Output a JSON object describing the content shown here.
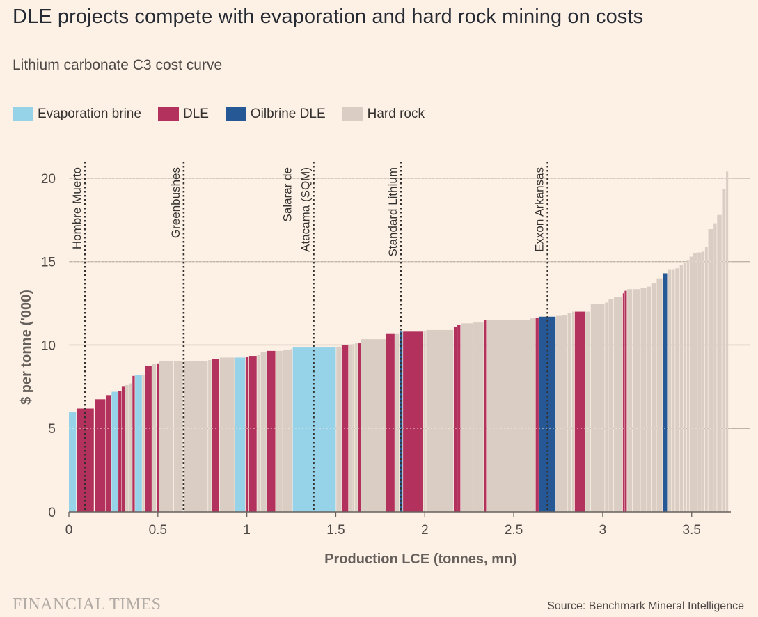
{
  "title": "DLE projects compete with evaporation and hard rock mining on costs",
  "subtitle": "Lithium carbonate C3 cost curve",
  "source": "Source: Benchmark Mineral Intelligence",
  "logo_text": "FINANCIAL TIMES",
  "colors": {
    "background": "#FDF1E6",
    "Evaporation brine": "#96D3E8",
    "DLE": "#B3325D",
    "Oilbrine DLE": "#275896",
    "Hard rock": "#DACDC3",
    "grid": "#BFB3A8",
    "text": "#33302E"
  },
  "legend": [
    {
      "label": "Evaporation brine",
      "color": "#96D3E8"
    },
    {
      "label": "DLE",
      "color": "#B3325D"
    },
    {
      "label": "Oilbrine DLE",
      "color": "#275896"
    },
    {
      "label": "Hard rock",
      "color": "#DACDC3"
    }
  ],
  "chart_data": {
    "type": "bar",
    "xlabel": "Production LCE (tonnes, mn)",
    "ylabel": "$ per tonne ('000)",
    "xlim": [
      0,
      3.72
    ],
    "ylim": [
      0,
      21
    ],
    "xticks": [
      0,
      0.5,
      1,
      1.5,
      2,
      2.5,
      3,
      3.5
    ],
    "xtick_labels": [
      "0",
      "0.5",
      "1",
      "1.5",
      "2",
      "2.5",
      "3",
      "3.5"
    ],
    "yticks": [
      0,
      5,
      10,
      15,
      20
    ],
    "ytick_labels": [
      "0",
      "5",
      "10",
      "15",
      "20"
    ],
    "grid": true,
    "legend_position": "top-left",
    "note": "Variable-width bars: each project spans [x0, x1] of cumulative production with height = cost.",
    "bars": [
      {
        "x0": 0.0,
        "x1": 0.04,
        "cost": 6.0,
        "type": "Evaporation brine"
      },
      {
        "x0": 0.045,
        "x1": 0.14,
        "cost": 6.2,
        "type": "DLE"
      },
      {
        "x0": 0.145,
        "x1": 0.205,
        "cost": 6.75,
        "type": "DLE"
      },
      {
        "x0": 0.21,
        "x1": 0.235,
        "cost": 7.0,
        "type": "DLE"
      },
      {
        "x0": 0.24,
        "x1": 0.275,
        "cost": 7.2,
        "type": "Evaporation brine"
      },
      {
        "x0": 0.278,
        "x1": 0.295,
        "cost": 7.25,
        "type": "DLE"
      },
      {
        "x0": 0.297,
        "x1": 0.315,
        "cost": 7.5,
        "type": "DLE"
      },
      {
        "x0": 0.317,
        "x1": 0.335,
        "cost": 7.6,
        "type": "Hard rock"
      },
      {
        "x0": 0.337,
        "x1": 0.355,
        "cost": 7.7,
        "type": "Hard rock"
      },
      {
        "x0": 0.357,
        "x1": 0.37,
        "cost": 8.15,
        "type": "DLE"
      },
      {
        "x0": 0.372,
        "x1": 0.41,
        "cost": 8.2,
        "type": "Evaporation brine"
      },
      {
        "x0": 0.412,
        "x1": 0.425,
        "cost": 8.2,
        "type": "Hard rock"
      },
      {
        "x0": 0.428,
        "x1": 0.465,
        "cost": 8.75,
        "type": "DLE"
      },
      {
        "x0": 0.468,
        "x1": 0.49,
        "cost": 8.85,
        "type": "Hard rock"
      },
      {
        "x0": 0.493,
        "x1": 0.505,
        "cost": 8.9,
        "type": "DLE"
      },
      {
        "x0": 0.508,
        "x1": 0.585,
        "cost": 9.05,
        "type": "Hard rock"
      },
      {
        "x0": 0.59,
        "x1": 0.64,
        "cost": 9.05,
        "type": "Hard rock"
      },
      {
        "x0": 0.645,
        "x1": 0.78,
        "cost": 9.05,
        "type": "Hard rock"
      },
      {
        "x0": 0.783,
        "x1": 0.8,
        "cost": 9.1,
        "type": "Hard rock"
      },
      {
        "x0": 0.803,
        "x1": 0.845,
        "cost": 9.15,
        "type": "DLE"
      },
      {
        "x0": 0.848,
        "x1": 0.93,
        "cost": 9.25,
        "type": "Hard rock"
      },
      {
        "x0": 0.933,
        "x1": 0.99,
        "cost": 9.25,
        "type": "Evaporation brine"
      },
      {
        "x0": 0.993,
        "x1": 1.01,
        "cost": 9.3,
        "type": "DLE"
      },
      {
        "x0": 1.013,
        "x1": 1.055,
        "cost": 9.35,
        "type": "DLE"
      },
      {
        "x0": 1.058,
        "x1": 1.075,
        "cost": 9.4,
        "type": "Hard rock"
      },
      {
        "x0": 1.078,
        "x1": 1.11,
        "cost": 9.6,
        "type": "Hard rock"
      },
      {
        "x0": 1.113,
        "x1": 1.16,
        "cost": 9.65,
        "type": "DLE"
      },
      {
        "x0": 1.163,
        "x1": 1.2,
        "cost": 9.65,
        "type": "Hard rock"
      },
      {
        "x0": 1.203,
        "x1": 1.24,
        "cost": 9.7,
        "type": "Hard rock"
      },
      {
        "x0": 1.243,
        "x1": 1.255,
        "cost": 9.75,
        "type": "Hard rock"
      },
      {
        "x0": 1.258,
        "x1": 1.5,
        "cost": 9.85,
        "type": "Evaporation brine"
      },
      {
        "x0": 1.503,
        "x1": 1.53,
        "cost": 9.9,
        "type": "Hard rock"
      },
      {
        "x0": 1.533,
        "x1": 1.57,
        "cost": 10.0,
        "type": "DLE"
      },
      {
        "x0": 1.573,
        "x1": 1.59,
        "cost": 10.0,
        "type": "Hard rock"
      },
      {
        "x0": 1.593,
        "x1": 1.605,
        "cost": 10.05,
        "type": "Hard rock"
      },
      {
        "x0": 1.608,
        "x1": 1.622,
        "cost": 10.1,
        "type": "Hard rock"
      },
      {
        "x0": 1.625,
        "x1": 1.64,
        "cost": 10.1,
        "type": "DLE"
      },
      {
        "x0": 1.643,
        "x1": 1.78,
        "cost": 10.35,
        "type": "Hard rock"
      },
      {
        "x0": 1.783,
        "x1": 1.83,
        "cost": 10.7,
        "type": "DLE"
      },
      {
        "x0": 1.833,
        "x1": 1.855,
        "cost": 10.7,
        "type": "Hard rock"
      },
      {
        "x0": 1.858,
        "x1": 1.875,
        "cost": 10.8,
        "type": "Oilbrine DLE"
      },
      {
        "x0": 1.878,
        "x1": 1.99,
        "cost": 10.8,
        "type": "DLE"
      },
      {
        "x0": 1.993,
        "x1": 2.005,
        "cost": 10.85,
        "type": "Hard rock"
      },
      {
        "x0": 2.008,
        "x1": 2.16,
        "cost": 10.9,
        "type": "Hard rock"
      },
      {
        "x0": 2.163,
        "x1": 2.18,
        "cost": 11.1,
        "type": "DLE"
      },
      {
        "x0": 2.183,
        "x1": 2.2,
        "cost": 11.2,
        "type": "DLE"
      },
      {
        "x0": 2.203,
        "x1": 2.27,
        "cost": 11.3,
        "type": "Hard rock"
      },
      {
        "x0": 2.273,
        "x1": 2.33,
        "cost": 11.35,
        "type": "Hard rock"
      },
      {
        "x0": 2.333,
        "x1": 2.345,
        "cost": 11.5,
        "type": "DLE"
      },
      {
        "x0": 2.348,
        "x1": 2.59,
        "cost": 11.5,
        "type": "Hard rock"
      },
      {
        "x0": 2.593,
        "x1": 2.62,
        "cost": 11.6,
        "type": "Hard rock"
      },
      {
        "x0": 2.623,
        "x1": 2.64,
        "cost": 11.65,
        "type": "DLE"
      },
      {
        "x0": 2.643,
        "x1": 2.735,
        "cost": 11.7,
        "type": "Oilbrine DLE"
      },
      {
        "x0": 2.738,
        "x1": 2.77,
        "cost": 11.75,
        "type": "Hard rock"
      },
      {
        "x0": 2.773,
        "x1": 2.8,
        "cost": 11.8,
        "type": "Hard rock"
      },
      {
        "x0": 2.803,
        "x1": 2.825,
        "cost": 11.9,
        "type": "Hard rock"
      },
      {
        "x0": 2.828,
        "x1": 2.84,
        "cost": 12.0,
        "type": "Hard rock"
      },
      {
        "x0": 2.843,
        "x1": 2.9,
        "cost": 12.0,
        "type": "DLE"
      },
      {
        "x0": 2.903,
        "x1": 2.93,
        "cost": 12.0,
        "type": "Hard rock"
      },
      {
        "x0": 2.933,
        "x1": 3.01,
        "cost": 12.45,
        "type": "Hard rock"
      },
      {
        "x0": 3.013,
        "x1": 3.03,
        "cost": 12.55,
        "type": "Hard rock"
      },
      {
        "x0": 3.033,
        "x1": 3.06,
        "cost": 12.75,
        "type": "Hard rock"
      },
      {
        "x0": 3.063,
        "x1": 3.11,
        "cost": 12.9,
        "type": "Hard rock"
      },
      {
        "x0": 3.113,
        "x1": 3.12,
        "cost": 13.1,
        "type": "DLE"
      },
      {
        "x0": 3.123,
        "x1": 3.135,
        "cost": 13.25,
        "type": "DLE"
      },
      {
        "x0": 3.138,
        "x1": 3.165,
        "cost": 13.35,
        "type": "Hard rock"
      },
      {
        "x0": 3.168,
        "x1": 3.21,
        "cost": 13.35,
        "type": "Hard rock"
      },
      {
        "x0": 3.213,
        "x1": 3.245,
        "cost": 13.4,
        "type": "Hard rock"
      },
      {
        "x0": 3.248,
        "x1": 3.27,
        "cost": 13.5,
        "type": "Hard rock"
      },
      {
        "x0": 3.273,
        "x1": 3.3,
        "cost": 13.7,
        "type": "Hard rock"
      },
      {
        "x0": 3.303,
        "x1": 3.335,
        "cost": 14.0,
        "type": "Hard rock"
      },
      {
        "x0": 3.338,
        "x1": 3.362,
        "cost": 14.3,
        "type": "Oilbrine DLE"
      },
      {
        "x0": 3.365,
        "x1": 3.385,
        "cost": 14.55,
        "type": "Hard rock"
      },
      {
        "x0": 3.388,
        "x1": 3.405,
        "cost": 14.55,
        "type": "Hard rock"
      },
      {
        "x0": 3.408,
        "x1": 3.43,
        "cost": 14.6,
        "type": "Hard rock"
      },
      {
        "x0": 3.433,
        "x1": 3.45,
        "cost": 14.8,
        "type": "Hard rock"
      },
      {
        "x0": 3.453,
        "x1": 3.47,
        "cost": 14.9,
        "type": "Hard rock"
      },
      {
        "x0": 3.473,
        "x1": 3.485,
        "cost": 15.1,
        "type": "Hard rock"
      },
      {
        "x0": 3.488,
        "x1": 3.505,
        "cost": 15.3,
        "type": "Hard rock"
      },
      {
        "x0": 3.508,
        "x1": 3.53,
        "cost": 15.5,
        "type": "Hard rock"
      },
      {
        "x0": 3.533,
        "x1": 3.555,
        "cost": 15.55,
        "type": "Hard rock"
      },
      {
        "x0": 3.558,
        "x1": 3.572,
        "cost": 15.6,
        "type": "Hard rock"
      },
      {
        "x0": 3.575,
        "x1": 3.59,
        "cost": 15.9,
        "type": "Hard rock"
      },
      {
        "x0": 3.593,
        "x1": 3.62,
        "cost": 16.95,
        "type": "Hard rock"
      },
      {
        "x0": 3.623,
        "x1": 3.64,
        "cost": 17.3,
        "type": "Hard rock"
      },
      {
        "x0": 3.643,
        "x1": 3.668,
        "cost": 17.8,
        "type": "Hard rock"
      },
      {
        "x0": 3.671,
        "x1": 3.69,
        "cost": 19.35,
        "type": "Hard rock"
      },
      {
        "x0": 3.693,
        "x1": 3.705,
        "cost": 20.4,
        "type": "Hard rock"
      }
    ],
    "annotations": [
      {
        "label": "Hombre Muerto",
        "x": 0.09
      },
      {
        "label": "Greenbushes",
        "x": 0.645
      },
      {
        "label": "Salarar de\nAtacama (SQM)",
        "x": 1.375
      },
      {
        "label": "Standard Lithium",
        "x": 1.865
      },
      {
        "label": "Exxon Arkansas",
        "x": 2.69
      }
    ]
  }
}
